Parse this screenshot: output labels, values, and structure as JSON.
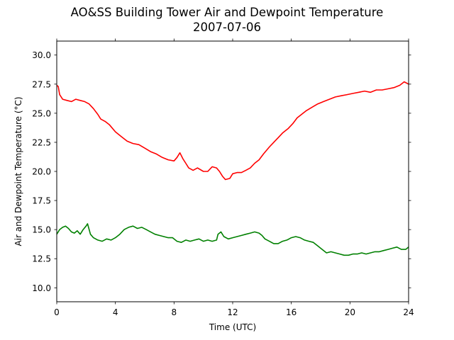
{
  "chart_data": {
    "type": "line",
    "title_line1": "AO&SS Building Tower Air and Dewpoint Temperature",
    "title_line2": "2007-07-06",
    "xlabel": "Time (UTC)",
    "ylabel": "Air and Dewpoint Temperature (°C)",
    "xlim": [
      0,
      24
    ],
    "ylim": [
      8.8,
      31.2
    ],
    "x_ticks": [
      0,
      4,
      8,
      12,
      16,
      20,
      24
    ],
    "y_ticks": [
      10.0,
      12.5,
      15.0,
      17.5,
      20.0,
      22.5,
      25.0,
      27.5,
      30.0
    ],
    "grid": false,
    "series": [
      {
        "color": "#ff0000",
        "points": [
          [
            0,
            27.4
          ],
          [
            0.1,
            27.3
          ],
          [
            0.2,
            26.6
          ],
          [
            0.4,
            26.2
          ],
          [
            0.7,
            26.1
          ],
          [
            1.0,
            26.0
          ],
          [
            1.3,
            26.2
          ],
          [
            1.6,
            26.1
          ],
          [
            1.9,
            26.0
          ],
          [
            2.2,
            25.8
          ],
          [
            2.5,
            25.4
          ],
          [
            2.8,
            24.9
          ],
          [
            3.0,
            24.5
          ],
          [
            3.3,
            24.3
          ],
          [
            3.6,
            24.0
          ],
          [
            4.0,
            23.4
          ],
          [
            4.4,
            23.0
          ],
          [
            4.8,
            22.6
          ],
          [
            5.2,
            22.4
          ],
          [
            5.6,
            22.3
          ],
          [
            6.0,
            22.0
          ],
          [
            6.4,
            21.7
          ],
          [
            6.8,
            21.5
          ],
          [
            7.2,
            21.2
          ],
          [
            7.6,
            21.0
          ],
          [
            8.0,
            20.9
          ],
          [
            8.2,
            21.2
          ],
          [
            8.4,
            21.6
          ],
          [
            8.6,
            21.1
          ],
          [
            8.8,
            20.7
          ],
          [
            9.0,
            20.3
          ],
          [
            9.3,
            20.1
          ],
          [
            9.6,
            20.3
          ],
          [
            10.0,
            20.0
          ],
          [
            10.3,
            20.0
          ],
          [
            10.6,
            20.4
          ],
          [
            10.9,
            20.3
          ],
          [
            11.1,
            20.0
          ],
          [
            11.3,
            19.6
          ],
          [
            11.5,
            19.3
          ],
          [
            11.8,
            19.4
          ],
          [
            12.0,
            19.8
          ],
          [
            12.3,
            19.9
          ],
          [
            12.6,
            19.9
          ],
          [
            12.9,
            20.1
          ],
          [
            13.2,
            20.3
          ],
          [
            13.5,
            20.7
          ],
          [
            13.8,
            21.0
          ],
          [
            14.1,
            21.5
          ],
          [
            14.5,
            22.1
          ],
          [
            14.8,
            22.5
          ],
          [
            15.1,
            22.9
          ],
          [
            15.4,
            23.3
          ],
          [
            15.8,
            23.7
          ],
          [
            16.1,
            24.1
          ],
          [
            16.4,
            24.6
          ],
          [
            16.7,
            24.9
          ],
          [
            17.0,
            25.2
          ],
          [
            17.4,
            25.5
          ],
          [
            17.8,
            25.8
          ],
          [
            18.2,
            26.0
          ],
          [
            18.6,
            26.2
          ],
          [
            19.0,
            26.4
          ],
          [
            19.4,
            26.5
          ],
          [
            19.8,
            26.6
          ],
          [
            20.2,
            26.7
          ],
          [
            20.6,
            26.8
          ],
          [
            21.0,
            26.9
          ],
          [
            21.4,
            26.8
          ],
          [
            21.8,
            27.0
          ],
          [
            22.2,
            27.0
          ],
          [
            22.6,
            27.1
          ],
          [
            23.0,
            27.2
          ],
          [
            23.4,
            27.4
          ],
          [
            23.7,
            27.7
          ],
          [
            24.0,
            27.5
          ]
        ]
      },
      {
        "color": "#008000",
        "points": [
          [
            0,
            14.6
          ],
          [
            0.2,
            15.0
          ],
          [
            0.4,
            15.2
          ],
          [
            0.6,
            15.3
          ],
          [
            0.8,
            15.1
          ],
          [
            1.0,
            14.8
          ],
          [
            1.2,
            14.7
          ],
          [
            1.4,
            14.9
          ],
          [
            1.6,
            14.6
          ],
          [
            1.8,
            15.0
          ],
          [
            2.0,
            15.3
          ],
          [
            2.1,
            15.5
          ],
          [
            2.3,
            14.6
          ],
          [
            2.5,
            14.3
          ],
          [
            2.8,
            14.1
          ],
          [
            3.1,
            14.0
          ],
          [
            3.4,
            14.2
          ],
          [
            3.7,
            14.1
          ],
          [
            4.0,
            14.3
          ],
          [
            4.3,
            14.6
          ],
          [
            4.6,
            15.0
          ],
          [
            4.9,
            15.2
          ],
          [
            5.2,
            15.3
          ],
          [
            5.5,
            15.1
          ],
          [
            5.8,
            15.2
          ],
          [
            6.1,
            15.0
          ],
          [
            6.4,
            14.8
          ],
          [
            6.7,
            14.6
          ],
          [
            7.0,
            14.5
          ],
          [
            7.3,
            14.4
          ],
          [
            7.6,
            14.3
          ],
          [
            7.9,
            14.3
          ],
          [
            8.2,
            14.0
          ],
          [
            8.5,
            13.9
          ],
          [
            8.8,
            14.1
          ],
          [
            9.1,
            14.0
          ],
          [
            9.4,
            14.1
          ],
          [
            9.7,
            14.2
          ],
          [
            10.0,
            14.0
          ],
          [
            10.3,
            14.1
          ],
          [
            10.6,
            14.0
          ],
          [
            10.9,
            14.1
          ],
          [
            11.0,
            14.6
          ],
          [
            11.2,
            14.8
          ],
          [
            11.4,
            14.4
          ],
          [
            11.7,
            14.2
          ],
          [
            12.0,
            14.3
          ],
          [
            12.3,
            14.4
          ],
          [
            12.6,
            14.5
          ],
          [
            12.9,
            14.6
          ],
          [
            13.2,
            14.7
          ],
          [
            13.5,
            14.8
          ],
          [
            13.8,
            14.7
          ],
          [
            14.0,
            14.5
          ],
          [
            14.2,
            14.2
          ],
          [
            14.5,
            14.0
          ],
          [
            14.8,
            13.8
          ],
          [
            15.1,
            13.8
          ],
          [
            15.4,
            14.0
          ],
          [
            15.7,
            14.1
          ],
          [
            16.0,
            14.3
          ],
          [
            16.3,
            14.4
          ],
          [
            16.6,
            14.3
          ],
          [
            16.9,
            14.1
          ],
          [
            17.2,
            14.0
          ],
          [
            17.5,
            13.9
          ],
          [
            17.8,
            13.6
          ],
          [
            18.1,
            13.3
          ],
          [
            18.4,
            13.0
          ],
          [
            18.7,
            13.1
          ],
          [
            19.0,
            13.0
          ],
          [
            19.3,
            12.9
          ],
          [
            19.6,
            12.8
          ],
          [
            19.9,
            12.8
          ],
          [
            20.2,
            12.9
          ],
          [
            20.5,
            12.9
          ],
          [
            20.8,
            13.0
          ],
          [
            21.1,
            12.9
          ],
          [
            21.4,
            13.0
          ],
          [
            21.7,
            13.1
          ],
          [
            22.0,
            13.1
          ],
          [
            22.3,
            13.2
          ],
          [
            22.6,
            13.3
          ],
          [
            22.9,
            13.4
          ],
          [
            23.2,
            13.5
          ],
          [
            23.5,
            13.3
          ],
          [
            23.8,
            13.3
          ],
          [
            24.0,
            13.5
          ]
        ]
      }
    ]
  }
}
